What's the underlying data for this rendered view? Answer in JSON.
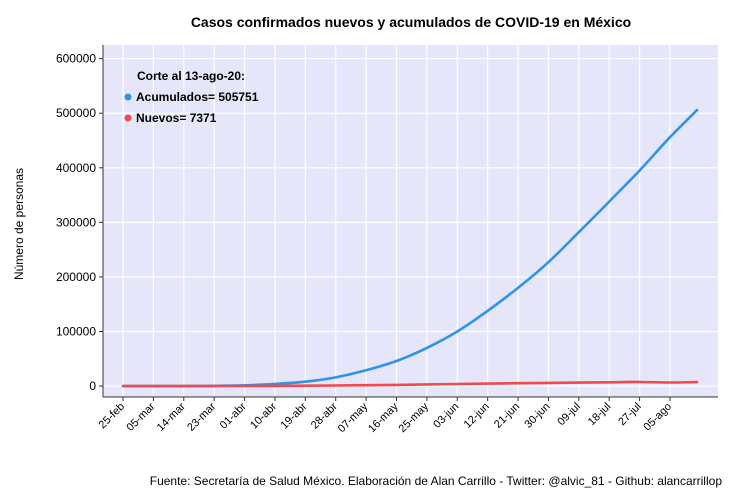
{
  "chart_data": {
    "type": "line",
    "title": "Casos confirmados nuevos y acumulados de COVID-19 en México",
    "xlabel": "",
    "ylabel": "Número de personas",
    "caption": "Fuente: Secretaría de Salud México. Elaboración de Alan Carrillo - Twitter: @alvic_81 - Github: alancarrillop",
    "x_start": "2020-02-25",
    "x_end": "2020-08-13",
    "x_ticks": [
      "25-feb",
      "05-mar",
      "14-mar",
      "23-mar",
      "01-abr",
      "10-abr",
      "19-abr",
      "28-abr",
      "07-may",
      "16-may",
      "25-may",
      "03-jun",
      "12-jun",
      "21-jun",
      "30-jun",
      "09-jul",
      "18-jul",
      "27-jul",
      "05-ago"
    ],
    "y_ticks": [
      0,
      100000,
      200000,
      300000,
      400000,
      500000,
      600000
    ],
    "ylim": [
      -20000,
      625000
    ],
    "grid": true,
    "legend": {
      "position": "top-left",
      "title": "Corte al 13-ago-20:",
      "items": [
        {
          "label": "Acumulados= 505751",
          "color": "#2E94E8"
        },
        {
          "label": "Nuevos= 7371",
          "color": "#F0494F"
        }
      ]
    },
    "series": [
      {
        "name": "Acumulados",
        "color": "#2E94E8",
        "points": [
          [
            "2020-02-25",
            0
          ],
          [
            "2020-03-05",
            5
          ],
          [
            "2020-03-14",
            50
          ],
          [
            "2020-03-23",
            400
          ],
          [
            "2020-04-01",
            1500
          ],
          [
            "2020-04-10",
            4000
          ],
          [
            "2020-04-19",
            8000
          ],
          [
            "2020-04-28",
            16000
          ],
          [
            "2020-05-07",
            29000
          ],
          [
            "2020-05-16",
            46000
          ],
          [
            "2020-05-25",
            70000
          ],
          [
            "2020-06-03",
            100000
          ],
          [
            "2020-06-12",
            138000
          ],
          [
            "2020-06-21",
            180000
          ],
          [
            "2020-06-30",
            227000
          ],
          [
            "2020-07-09",
            282000
          ],
          [
            "2020-07-18",
            338000
          ],
          [
            "2020-07-27",
            395000
          ],
          [
            "2020-08-05",
            456000
          ],
          [
            "2020-08-13",
            505751
          ]
        ]
      },
      {
        "name": "Nuevos",
        "color": "#F0494F",
        "points": [
          [
            "2020-02-25",
            0
          ],
          [
            "2020-03-05",
            0
          ],
          [
            "2020-03-14",
            20
          ],
          [
            "2020-03-23",
            80
          ],
          [
            "2020-04-01",
            200
          ],
          [
            "2020-04-10",
            400
          ],
          [
            "2020-04-19",
            700
          ],
          [
            "2020-04-28",
            1100
          ],
          [
            "2020-05-07",
            1600
          ],
          [
            "2020-05-16",
            2200
          ],
          [
            "2020-05-25",
            3000
          ],
          [
            "2020-06-03",
            3800
          ],
          [
            "2020-06-12",
            4600
          ],
          [
            "2020-06-21",
            5200
          ],
          [
            "2020-06-30",
            5800
          ],
          [
            "2020-07-09",
            6400
          ],
          [
            "2020-07-18",
            7000
          ],
          [
            "2020-07-27",
            7500
          ],
          [
            "2020-08-05",
            6500
          ],
          [
            "2020-08-13",
            7371
          ]
        ]
      }
    ]
  }
}
